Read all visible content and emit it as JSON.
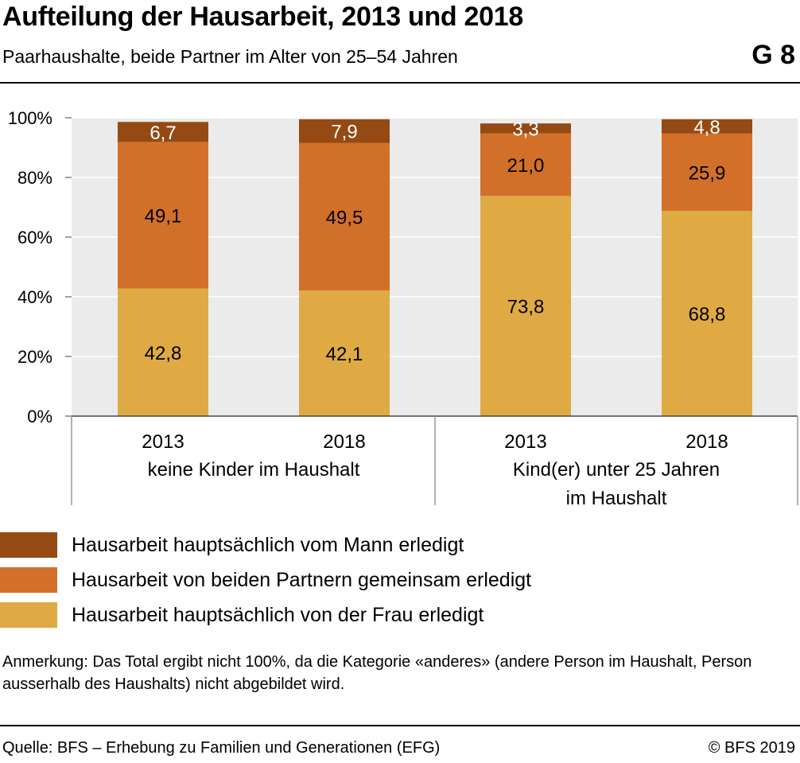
{
  "header": {
    "title": "Aufteilung der Hausarbeit, 2013 und 2018",
    "subtitle": "Paarhaushalte, beide Partner im Alter von 25–54 Jahren",
    "badge": "G 8"
  },
  "chart_data": {
    "type": "bar",
    "stacked": true,
    "ylim": [
      0,
      100
    ],
    "yticks": [
      "0%",
      "20%",
      "40%",
      "60%",
      "80%",
      "100%"
    ],
    "categories": [
      "2013",
      "2018",
      "2013",
      "2018"
    ],
    "groups": [
      {
        "label_lines": [
          "keine Kinder im Haushalt"
        ],
        "categories": [
          0,
          1
        ]
      },
      {
        "label_lines": [
          "Kind(er) unter 25 Jahren",
          "im Haushalt"
        ],
        "categories": [
          2,
          3
        ]
      }
    ],
    "series": [
      {
        "name": "Hausarbeit hauptsächlich von der Frau erledigt",
        "color": "#dfaa44",
        "values": [
          42.8,
          42.1,
          73.8,
          68.8
        ],
        "labels": [
          "42,8",
          "42,1",
          "73,8",
          "68,8"
        ],
        "label_color": "#000000"
      },
      {
        "name": "Hausarbeit von beiden Partnern gemeinsam erledigt",
        "color": "#d2702a",
        "values": [
          49.1,
          49.5,
          21.0,
          25.9
        ],
        "labels": [
          "49,1",
          "49,5",
          "21,0",
          "25,9"
        ],
        "label_color": "#000000"
      },
      {
        "name": "Hausarbeit hauptsächlich vom Mann erledigt",
        "color": "#944a12",
        "values": [
          6.7,
          7.9,
          3.3,
          4.8
        ],
        "labels": [
          "6,7",
          "7,9",
          "3,3",
          "4,8"
        ],
        "label_color": "#ffffff"
      }
    ],
    "plot_background": "#ebebeb"
  },
  "legend": [
    {
      "label": "Hausarbeit hauptsächlich vom Mann erledigt",
      "color": "#944a12"
    },
    {
      "label": "Hausarbeit von beiden Partnern gemeinsam erledigt",
      "color": "#d2702a"
    },
    {
      "label": "Hausarbeit hauptsächlich von der Frau erledigt",
      "color": "#dfaa44"
    }
  ],
  "footer": {
    "note": "Anmerkung: Das Total ergibt nicht 100%, da die Kategorie «anderes» (andere Person im Haushalt, Person ausserhalb des Haushalts) nicht abgebildet wird.",
    "source": "Quelle: BFS – Erhebung zu Familien und Generationen (EFG)",
    "copyright": "© BFS 2019"
  }
}
